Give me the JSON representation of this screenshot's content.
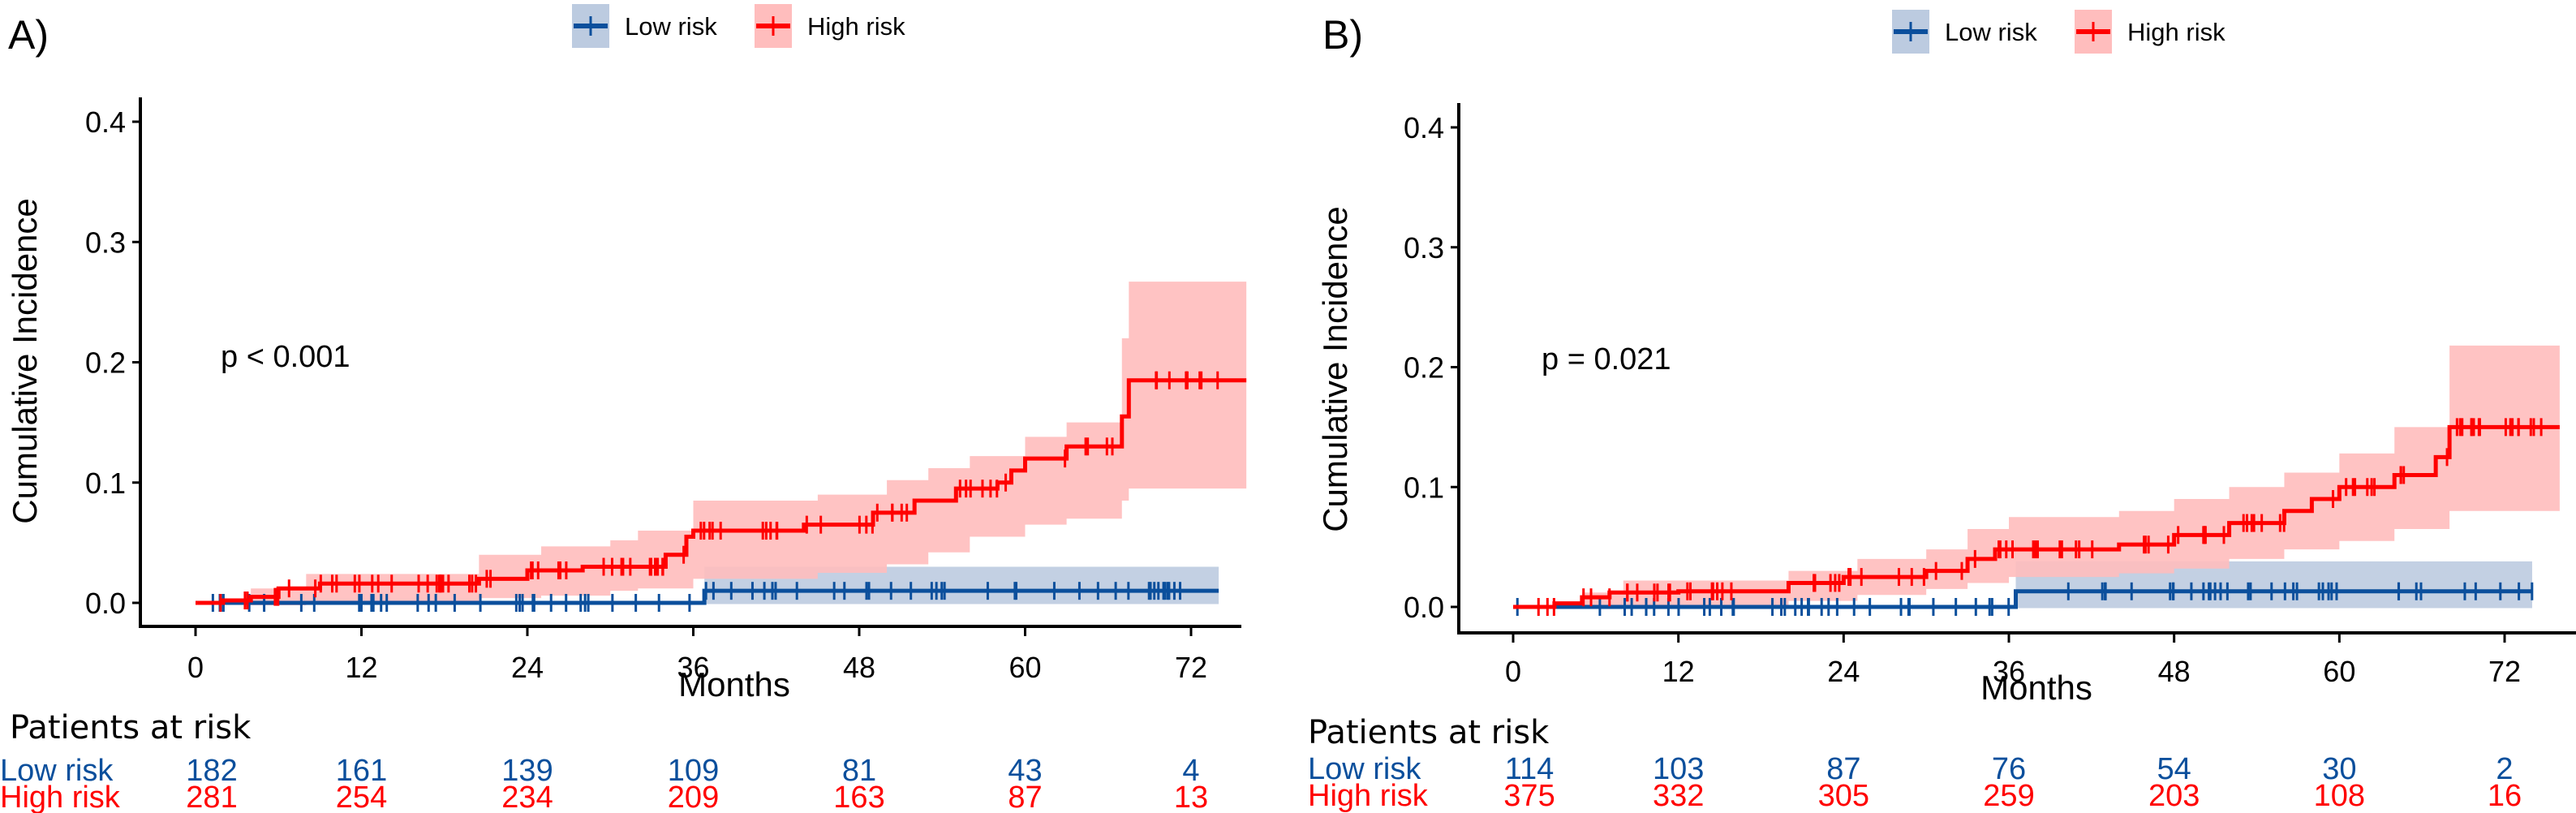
{
  "colors": {
    "low": "#0b4f9c",
    "low_band": "#bccbe0",
    "high": "#ff0000",
    "high_band": "#ffbdbd",
    "axis": "#000000"
  },
  "legend": {
    "items": [
      {
        "label": "Low risk",
        "key": "low"
      },
      {
        "label": "High risk",
        "key": "high"
      }
    ]
  },
  "chart_data": [
    {
      "panel": "A)",
      "type": "line",
      "subtype": "cumulative-incidence-step",
      "ylabel": "Cumulative Incidence",
      "xlabel": "Months",
      "xticks": [
        0,
        12,
        24,
        36,
        48,
        60,
        72
      ],
      "yticks": [
        "0.0",
        "0.1",
        "0.2",
        "0.3",
        "0.4"
      ],
      "xlim": [
        -1,
        76
      ],
      "ylim": [
        -0.015,
        0.42
      ],
      "annotation": "p < 0.001",
      "legend_position": "top-center",
      "series": [
        {
          "name": "Low risk",
          "key": "low",
          "steps": [
            [
              0,
              0
            ],
            [
              36.8,
              0.01
            ],
            [
              74,
              0.01
            ]
          ],
          "band": [
            [
              0,
              0,
              0
            ],
            [
              36.8,
              -0.001,
              0.03
            ],
            [
              74,
              -0.001,
              0.03
            ]
          ]
        },
        {
          "name": "High risk",
          "key": "high",
          "steps": [
            [
              0,
              0
            ],
            [
              2,
              0.002
            ],
            [
              4,
              0.005
            ],
            [
              6,
              0.012
            ],
            [
              9,
              0.016
            ],
            [
              20.5,
              0.02
            ],
            [
              24,
              0.027
            ],
            [
              28,
              0.03
            ],
            [
              32,
              0.03
            ],
            [
              34,
              0.04
            ],
            [
              35.5,
              0.055
            ],
            [
              36,
              0.06
            ],
            [
              44,
              0.065
            ],
            [
              49,
              0.075
            ],
            [
              52,
              0.085
            ],
            [
              55,
              0.095
            ],
            [
              58,
              0.1
            ],
            [
              59,
              0.11
            ],
            [
              60,
              0.12
            ],
            [
              63,
              0.13
            ],
            [
              67,
              0.155
            ],
            [
              67.5,
              0.185
            ],
            [
              76,
              0.185
            ]
          ],
          "band": [
            [
              0,
              0,
              0
            ],
            [
              4,
              -0.002,
              0.012
            ],
            [
              8,
              -0.001,
              0.024
            ],
            [
              20.5,
              0.004,
              0.04
            ],
            [
              25,
              0.006,
              0.047
            ],
            [
              30,
              0.01,
              0.052
            ],
            [
              32,
              0.012,
              0.06
            ],
            [
              36,
              0.02,
              0.085
            ],
            [
              45,
              0.025,
              0.09
            ],
            [
              50,
              0.032,
              0.102
            ],
            [
              53,
              0.042,
              0.112
            ],
            [
              56,
              0.055,
              0.122
            ],
            [
              60,
              0.065,
              0.138
            ],
            [
              63,
              0.07,
              0.15
            ],
            [
              67,
              0.085,
              0.22
            ],
            [
              67.5,
              0.095,
              0.267
            ],
            [
              76,
              0.095,
              0.267
            ]
          ]
        }
      ]
    },
    {
      "panel": "B)",
      "type": "line",
      "subtype": "cumulative-incidence-step",
      "ylabel": "Cumulative Incidence",
      "xlabel": "Months",
      "xticks": [
        0,
        12,
        24,
        36,
        48,
        60,
        72
      ],
      "yticks": [
        "0.0",
        "0.1",
        "0.2",
        "0.3",
        "0.4"
      ],
      "xlim": [
        -3,
        77
      ],
      "ylim": [
        -0.02,
        0.42
      ],
      "annotation": "p = 0.021",
      "legend_position": "top-center",
      "series": [
        {
          "name": "Low risk",
          "key": "low",
          "steps": [
            [
              0,
              0
            ],
            [
              36.5,
              0.013
            ],
            [
              74,
              0.013
            ]
          ],
          "band": [
            [
              0,
              0,
              0
            ],
            [
              36.5,
              -0.001,
              0.038
            ],
            [
              74,
              -0.001,
              0.038
            ]
          ]
        },
        {
          "name": "High risk",
          "key": "high",
          "steps": [
            [
              0,
              0
            ],
            [
              3,
              0.003
            ],
            [
              5,
              0.008
            ],
            [
              7,
              0.012
            ],
            [
              12,
              0.013
            ],
            [
              20,
              0.02
            ],
            [
              24,
              0.025
            ],
            [
              30,
              0.03
            ],
            [
              33,
              0.04
            ],
            [
              35,
              0.048
            ],
            [
              44,
              0.052
            ],
            [
              48,
              0.06
            ],
            [
              52,
              0.07
            ],
            [
              56,
              0.08
            ],
            [
              58,
              0.09
            ],
            [
              60,
              0.1
            ],
            [
              64,
              0.11
            ],
            [
              67,
              0.125
            ],
            [
              68,
              0.15
            ],
            [
              76,
              0.15
            ]
          ],
          "band": [
            [
              0,
              0,
              0
            ],
            [
              5,
              -0.001,
              0.012
            ],
            [
              8,
              0,
              0.022
            ],
            [
              20,
              0.005,
              0.03
            ],
            [
              25,
              0.01,
              0.04
            ],
            [
              30,
              0.015,
              0.048
            ],
            [
              33,
              0.02,
              0.065
            ],
            [
              36,
              0.025,
              0.075
            ],
            [
              44,
              0.028,
              0.08
            ],
            [
              48,
              0.032,
              0.09
            ],
            [
              52,
              0.04,
              0.1
            ],
            [
              56,
              0.048,
              0.112
            ],
            [
              60,
              0.055,
              0.128
            ],
            [
              64,
              0.065,
              0.15
            ],
            [
              68,
              0.08,
              0.218
            ],
            [
              76,
              0.08,
              0.218
            ]
          ]
        }
      ]
    }
  ],
  "risk_tables": [
    {
      "title": "Patients at risk",
      "rows": [
        {
          "label": "Low risk",
          "key": "low",
          "values": [
            182,
            161,
            139,
            109,
            81,
            43,
            4
          ]
        },
        {
          "label": "High risk",
          "key": "high",
          "values": [
            281,
            254,
            234,
            209,
            163,
            87,
            13
          ]
        }
      ]
    },
    {
      "title": "Patients at risk",
      "rows": [
        {
          "label": "Low risk",
          "key": "low",
          "values": [
            114,
            103,
            87,
            76,
            54,
            30,
            2
          ]
        },
        {
          "label": "High risk",
          "key": "high",
          "values": [
            375,
            332,
            305,
            259,
            203,
            108,
            16
          ]
        }
      ]
    }
  ]
}
